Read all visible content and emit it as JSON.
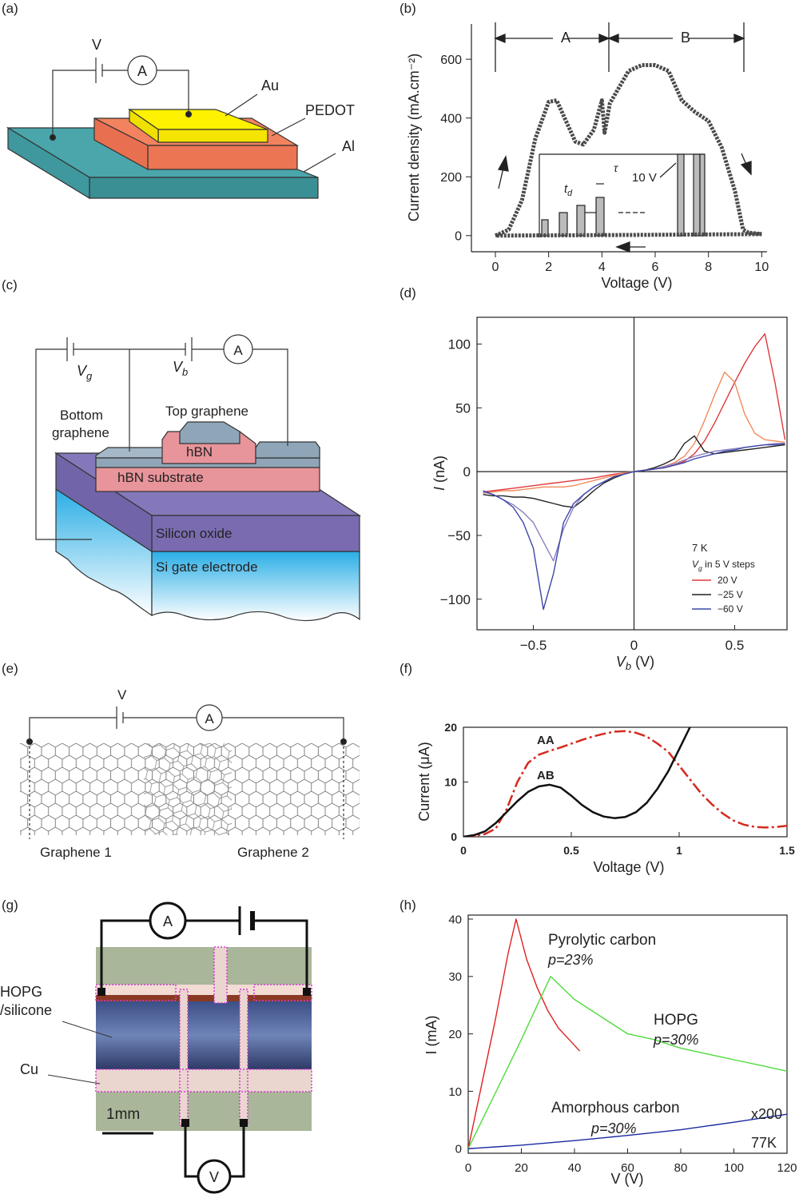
{
  "figure": {
    "panel_labels": [
      "(a)",
      "(b)",
      "(c)",
      "(d)",
      "(e)",
      "(f)",
      "(g)",
      "(h)"
    ]
  },
  "diagram_a": {
    "source": "V",
    "meter": "A",
    "labels": [
      "Au",
      "PEDOT",
      "Al"
    ]
  },
  "diagram_c": {
    "gate": {
      "main": "V",
      "sub": "g"
    },
    "bias": {
      "main": "V",
      "sub": "b"
    },
    "meter": "A",
    "labels": [
      "Top graphene",
      "hBN",
      "hBN substrate",
      "Silicon oxide",
      "Si gate electrode"
    ],
    "bottom_graphene": [
      "Bottom",
      "graphene"
    ]
  },
  "diagram_e": {
    "source": "V",
    "meter": "A",
    "labels": [
      "Graphene 1",
      "Graphene 2"
    ]
  },
  "diagram_g": {
    "meter": "A",
    "voltmeter": "V",
    "sample": [
      "HOPG",
      "/silicone"
    ],
    "electrode": "Cu",
    "scale_bar": "1mm"
  },
  "chart_data": [
    {
      "type": "line",
      "x_label": "Voltage (V)",
      "y_label": "Current density  (mA.cm⁻²)",
      "xlim": [
        -0.9,
        10.2
      ],
      "ylim": [
        -55,
        720
      ],
      "xticks": [
        0,
        2,
        4,
        6,
        8,
        10
      ],
      "yticks": [
        0,
        200,
        400,
        600
      ],
      "annotations": [
        "A",
        "B",
        {
          "main": "t",
          "sub": "d"
        },
        "τ",
        "10 V"
      ],
      "series": [
        {
          "color": "#4a4a4a",
          "x": [
            0,
            0.5,
            1,
            1.5,
            2,
            2.3,
            2.6,
            3,
            3.3,
            3.7,
            4,
            4.1,
            4.3,
            5,
            5.5,
            6,
            6.5,
            7,
            7.5,
            8,
            8.5,
            9,
            9.3,
            9.5,
            10
          ],
          "values": [
            0,
            20,
            120,
            330,
            455,
            460,
            400,
            320,
            310,
            360,
            460,
            350,
            450,
            560,
            580,
            580,
            560,
            460,
            420,
            390,
            300,
            150,
            20,
            10,
            5
          ]
        },
        {
          "color": "#4a4a4a",
          "x": [
            10,
            5,
            0
          ],
          "values": [
            5,
            2,
            0
          ]
        }
      ]
    },
    {
      "type": "line",
      "x_label": {
        "main": "V",
        "sub": "b",
        "unit": " (V)"
      },
      "y_label": {
        "main": "I",
        "unit": " (nA)"
      },
      "xlim": [
        -0.78,
        0.76
      ],
      "ylim": [
        -124,
        121
      ],
      "xticks": [
        {
          "value": -0.5,
          "label": "−0.5"
        },
        0,
        0.5
      ],
      "yticks": [
        {
          "value": -100,
          "label": "−100"
        },
        {
          "value": -50,
          "label": "−50"
        },
        0,
        50,
        100
      ],
      "zero_lines": true,
      "legend": "lower right",
      "annotations": [
        "7 K",
        {
          "main": "V",
          "sub": "g",
          "unit": " in 5 V steps"
        }
      ],
      "x": [
        -0.75,
        -0.7,
        -0.65,
        -0.6,
        -0.55,
        -0.5,
        -0.45,
        -0.4,
        -0.35,
        -0.3,
        -0.25,
        -0.2,
        -0.15,
        -0.1,
        -0.05,
        0,
        0.05,
        0.1,
        0.15,
        0.2,
        0.25,
        0.3,
        0.35,
        0.4,
        0.45,
        0.5,
        0.55,
        0.6,
        0.65,
        0.7,
        0.75
      ],
      "series": [
        {
          "name": "20 V",
          "color": "#e0383c",
          "values": [
            -16,
            -15,
            -14,
            -13,
            -12,
            -11,
            -10,
            -9,
            -8,
            -7,
            -6,
            -5,
            -3.5,
            -2,
            -1,
            0,
            1,
            2,
            3,
            5,
            8,
            14,
            24,
            38,
            54,
            70,
            85,
            98,
            108,
            70,
            25
          ]
        },
        {
          "color": "#f08a5a",
          "values": [
            -17,
            -16,
            -15,
            -15,
            -14,
            -13,
            -12,
            -12,
            -12,
            -11,
            -9,
            -7,
            -5,
            -3,
            -1,
            0,
            1,
            2,
            4,
            7,
            12,
            22,
            40,
            60,
            78,
            70,
            45,
            30,
            25,
            24,
            23
          ]
        },
        {
          "name": "−25 V",
          "color": "#222222",
          "values": [
            -18,
            -19,
            -19,
            -20,
            -20,
            -21,
            -23,
            -25,
            -27,
            -28,
            -22,
            -15,
            -9,
            -5,
            -2,
            0,
            1,
            3,
            6,
            10,
            22,
            28,
            16,
            14,
            15,
            16,
            17,
            18,
            19,
            20,
            21
          ]
        },
        {
          "color": "#8c7fc0",
          "values": [
            -16,
            -18,
            -22,
            -26,
            -32,
            -40,
            -55,
            -70,
            -45,
            -28,
            -18,
            -12,
            -8,
            -4,
            -2,
            0,
            1,
            2,
            4,
            6,
            9,
            12,
            14,
            16,
            17,
            18,
            19,
            20,
            21,
            22,
            22
          ]
        },
        {
          "name": "−60 V",
          "color": "#3c48a8",
          "values": [
            -15,
            -18,
            -22,
            -28,
            -40,
            -60,
            -108,
            -80,
            -40,
            -25,
            -18,
            -12,
            -8,
            -4,
            -2,
            0,
            1,
            2,
            3,
            5,
            7,
            10,
            12,
            14,
            16,
            17,
            19,
            20,
            21,
            21,
            22
          ]
        }
      ]
    },
    {
      "type": "line",
      "x_label": "Voltage (V)",
      "y_label": "Current (μA)",
      "xlim": [
        0,
        1.5
      ],
      "ylim": [
        0,
        20
      ],
      "xticks": [
        0,
        0.5,
        1,
        1.5
      ],
      "yticks": [
        0,
        10,
        20
      ],
      "x": [
        0,
        0.05,
        0.1,
        0.15,
        0.2,
        0.25,
        0.3,
        0.35,
        0.4,
        0.45,
        0.5,
        0.55,
        0.6,
        0.65,
        0.7,
        0.75,
        0.8,
        0.85,
        0.9,
        0.95,
        1,
        1.05,
        1.1,
        1.15,
        1.2,
        1.25,
        1.3,
        1.35,
        1.4,
        1.45,
        1.5
      ],
      "series": [
        {
          "name": "AA",
          "color": "#d42a1e",
          "dashed": true,
          "values": [
            0,
            0.2,
            0.5,
            1.5,
            5,
            10,
            13.5,
            15,
            15.7,
            16.3,
            17,
            17.7,
            18.3,
            18.8,
            19.2,
            19.3,
            19,
            18.3,
            17,
            15.5,
            13,
            10.5,
            8,
            6,
            4.3,
            3,
            2.2,
            1.8,
            1.7,
            1.8,
            2
          ]
        },
        {
          "name": "AB",
          "color": "#111111",
          "values": [
            0,
            0.3,
            1,
            2.5,
            4.5,
            6.5,
            8.2,
            9.2,
            9.5,
            9,
            7.5,
            5.8,
            4.5,
            3.7,
            3.4,
            3.6,
            4.5,
            6.2,
            8.8,
            12,
            16,
            20,
            null,
            null,
            null,
            null,
            null,
            null,
            null,
            null,
            null
          ]
        }
      ]
    },
    {
      "type": "line",
      "x_label": "V (V)",
      "y_label": "I (mA)",
      "xlim": [
        0,
        120
      ],
      "ylim": [
        -0.8,
        40.7
      ],
      "xticks": [
        0,
        20,
        40,
        60,
        80,
        100,
        120
      ],
      "yticks": [
        0,
        10,
        20,
        30,
        40
      ],
      "annotations": [
        "p=23%",
        "p=30%",
        "p=30%",
        "x200",
        "77K"
      ],
      "series": [
        {
          "name": "Pyrolytic carbon",
          "color": "#e02020",
          "x": [
            0,
            5,
            10,
            15,
            18,
            22,
            26,
            30,
            34,
            38,
            42
          ],
          "values": [
            0,
            11,
            22,
            34,
            40,
            33,
            28,
            24,
            21,
            19,
            17
          ]
        },
        {
          "name": "HOPG",
          "color": "#4ddc3a",
          "x": [
            0,
            10,
            20,
            31,
            40,
            50,
            60,
            70,
            80,
            90,
            100,
            110,
            120
          ],
          "values": [
            0,
            9.5,
            19,
            30,
            26,
            23,
            20,
            19,
            17.5,
            16.5,
            15.5,
            14.5,
            13.5
          ]
        },
        {
          "name": "Amorphous carbon",
          "color": "#1a2aa0",
          "x": [
            0,
            20,
            40,
            60,
            80,
            100,
            120
          ],
          "values": [
            0,
            0.6,
            1.4,
            2.3,
            3.3,
            4.6,
            6
          ]
        }
      ]
    }
  ]
}
